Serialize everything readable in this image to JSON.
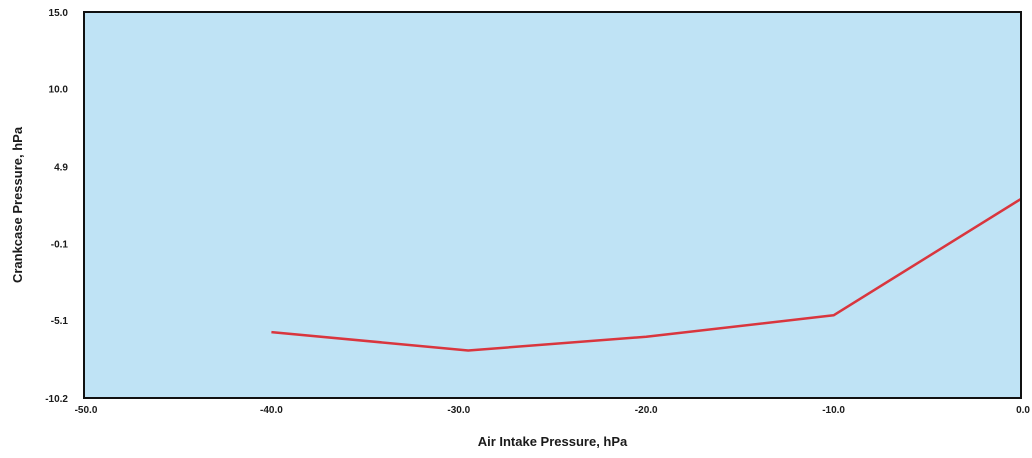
{
  "chart_data": {
    "type": "line",
    "title": "",
    "xlabel": "Air Intake Pressure, hPa",
    "ylabel": "Crankcase Pressure, hPa",
    "xlim": [
      -50.0,
      0.0
    ],
    "ylim": [
      -10.2,
      15.0
    ],
    "x_ticks": [
      "-50.0",
      "-40.0",
      "-30.0",
      "-20.0",
      "-10.0",
      "0.0"
    ],
    "y_ticks": [
      "15.0",
      "10.0",
      "4.9",
      "-0.1",
      "-5.1",
      "-10.2"
    ],
    "x_tick_values": [
      -50.0,
      -40.0,
      -30.0,
      -20.0,
      -10.0,
      0.0
    ],
    "y_tick_values": [
      15.0,
      10.0,
      4.9,
      -0.1,
      -5.1,
      -10.2
    ],
    "grid": false,
    "legend": "none",
    "colors": {
      "plot_background": "#bfe3f5",
      "line": "#d9363e",
      "frame": "#111111"
    },
    "series": [
      {
        "x": [
          -40.0,
          -29.5,
          -20.0,
          -10.0,
          0.0
        ],
        "y": [
          -5.9,
          -7.1,
          -6.2,
          -4.8,
          2.8
        ]
      }
    ]
  }
}
